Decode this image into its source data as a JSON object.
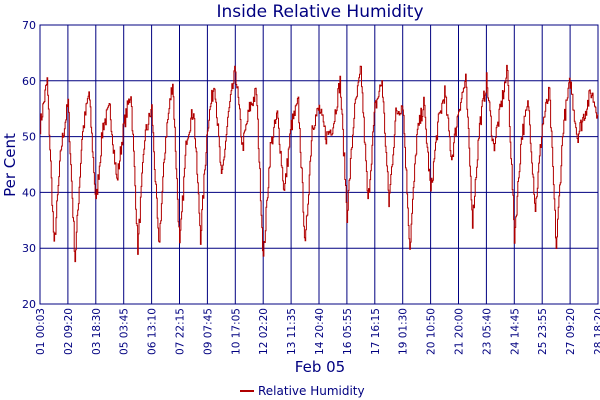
{
  "chart_data": {
    "type": "line",
    "title": "Inside Relative Humidity",
    "xlabel": "Feb 05",
    "ylabel": "Per Cent",
    "ylim": [
      20,
      70
    ],
    "yticks": [
      "70",
      "60",
      "50",
      "40",
      "30",
      "20"
    ],
    "xticks": [
      "01 00:03",
      "02 09:20",
      "03 18:30",
      "05 03:45",
      "06 13:10",
      "07 22:15",
      "09 07:45",
      "10 17:05",
      "12 02:20",
      "13 11:35",
      "14 20:40",
      "16 05:55",
      "17 16:15",
      "19 01:30",
      "20 10:50",
      "21 20:00",
      "23 05:40",
      "24 14:45",
      "25 23:55",
      "27 09:20",
      "28 18:20"
    ],
    "grid": true,
    "legend_position": "bottom-center",
    "line_color": "#b00000",
    "grid_color": "#000080",
    "series": [
      {
        "name": "Relative Humidity",
        "x_ticks_index": [
          0,
          0.25,
          0.5,
          0.75,
          1,
          1.25,
          1.5,
          1.75,
          2,
          2.25,
          2.5,
          2.75,
          3,
          3.25,
          3.5,
          3.75,
          4,
          4.25,
          4.5,
          4.75,
          5,
          5.25,
          5.5,
          5.75,
          6,
          6.25,
          6.5,
          6.75,
          7,
          7.25,
          7.5,
          7.75,
          8,
          8.25,
          8.5,
          8.75,
          9,
          9.25,
          9.5,
          9.75,
          10,
          10.25,
          10.5,
          10.75,
          11,
          11.25,
          11.5,
          11.75,
          12,
          12.25,
          12.5,
          12.75,
          13,
          13.25,
          13.5,
          13.75,
          14,
          14.25,
          14.5,
          14.75,
          15,
          15.25,
          15.5,
          15.75,
          16,
          16.25,
          16.5,
          16.75,
          17,
          17.25,
          17.5,
          17.75,
          18,
          18.25,
          18.5,
          18.75,
          19,
          19.25,
          19.5,
          19.75,
          20
        ],
        "values": [
          52,
          60,
          30,
          48,
          56,
          28,
          50,
          58,
          38,
          52,
          55,
          42,
          52,
          58,
          30,
          50,
          55,
          30,
          50,
          60,
          30,
          50,
          55,
          32,
          52,
          60,
          42,
          54,
          62,
          48,
          55,
          58,
          28,
          48,
          54,
          40,
          52,
          56,
          30,
          52,
          55,
          50,
          52,
          60,
          36,
          54,
          62,
          38,
          55,
          60,
          38,
          54,
          56,
          30,
          50,
          56,
          40,
          52,
          58,
          46,
          55,
          60,
          35,
          52,
          60,
          48,
          55,
          62,
          32,
          50,
          56,
          37,
          52,
          58,
          30,
          52,
          60,
          50,
          54,
          58,
          54
        ]
      }
    ]
  }
}
